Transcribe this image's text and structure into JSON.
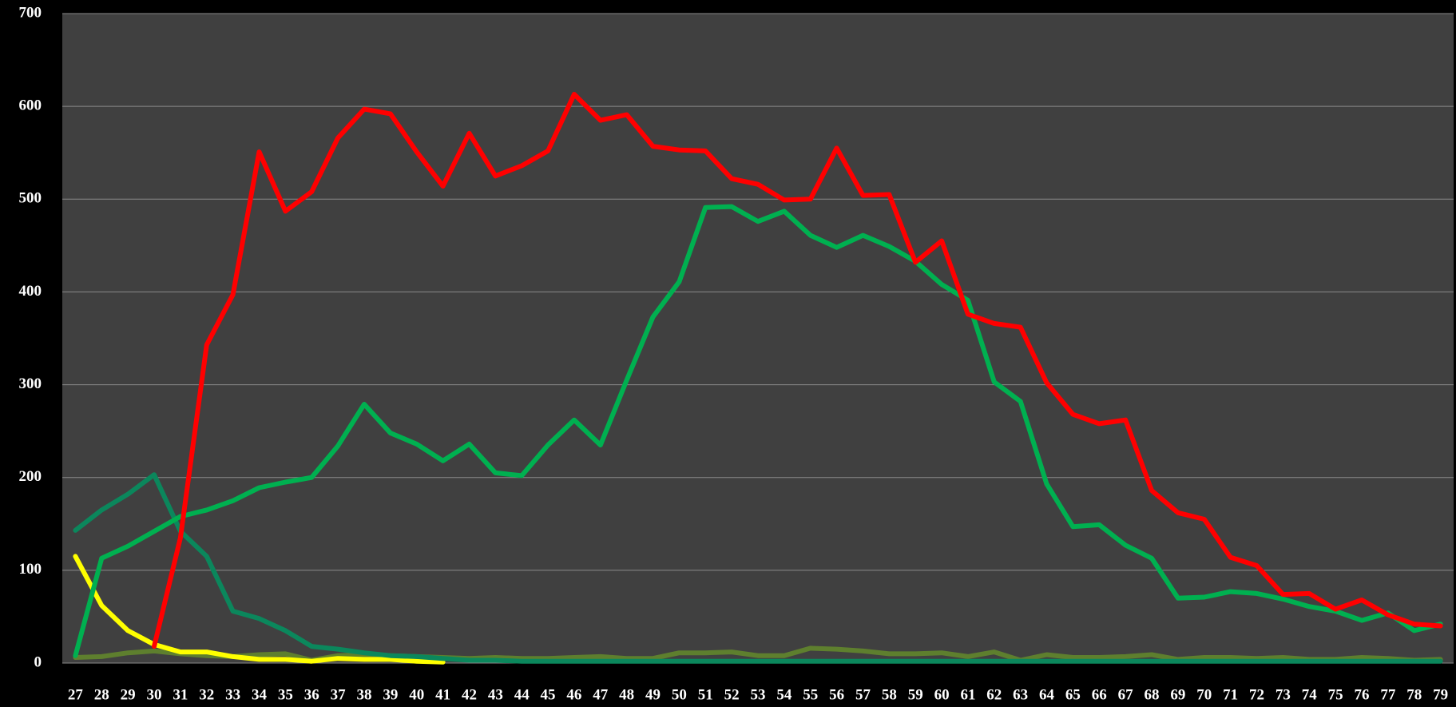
{
  "chart_data": {
    "type": "line",
    "categories": [
      "27",
      "28",
      "29",
      "30",
      "31",
      "32",
      "33",
      "34",
      "35",
      "36",
      "37",
      "38",
      "39",
      "40",
      "41",
      "42",
      "43",
      "44",
      "45",
      "46",
      "47",
      "48",
      "49",
      "50",
      "51",
      "52",
      "53",
      "54",
      "55",
      "56",
      "57",
      "58",
      "59",
      "60",
      "61",
      "62",
      "63",
      "64",
      "65",
      "66",
      "67",
      "68",
      "69",
      "70",
      "71",
      "72",
      "73",
      "74",
      "75",
      "76",
      "77",
      "78",
      "79"
    ],
    "series": [
      {
        "color": "#5e7f2e",
        "values": [
          6,
          7,
          11,
          13,
          10,
          8,
          7,
          9,
          10,
          3,
          8,
          9,
          8,
          7,
          6,
          5,
          6,
          5,
          5,
          6,
          7,
          5,
          5,
          11,
          11,
          12,
          8,
          8,
          16,
          15,
          13,
          10,
          10,
          11,
          7,
          12,
          3,
          9,
          6,
          6,
          7,
          9,
          4,
          6,
          6,
          5,
          6,
          4,
          4,
          6,
          5,
          3,
          4
        ]
      },
      {
        "color": "#ffff00",
        "values": [
          115,
          62,
          35,
          20,
          12,
          12,
          7,
          4,
          4,
          2,
          5,
          4,
          4,
          2,
          1,
          null,
          null,
          null,
          null,
          null,
          null,
          null,
          null,
          null,
          null,
          null,
          null,
          null,
          null,
          null,
          null,
          null,
          null,
          null,
          null,
          null,
          null,
          null,
          null,
          null,
          null,
          null,
          null,
          null,
          null,
          null,
          null,
          null,
          null,
          null,
          null,
          null,
          null
        ]
      },
      {
        "color": "#0b875c",
        "values": [
          143,
          165,
          182,
          203,
          142,
          115,
          56,
          48,
          35,
          18,
          15,
          11,
          8,
          7,
          5,
          3,
          3,
          2,
          2,
          2,
          2,
          2,
          2,
          2,
          2,
          2,
          2,
          2,
          2,
          2,
          2,
          2,
          2,
          2,
          2,
          2,
          2,
          2,
          2,
          2,
          2,
          2,
          2,
          2,
          2,
          2,
          2,
          2,
          2,
          2,
          2,
          2,
          2
        ]
      },
      {
        "color": "#00b050",
        "values": [
          8,
          113,
          126,
          142,
          158,
          165,
          175,
          189,
          195,
          200,
          234,
          279,
          248,
          236,
          218,
          236,
          205,
          202,
          235,
          262,
          235,
          305,
          373,
          411,
          491,
          492,
          476,
          487,
          461,
          448,
          461,
          449,
          433,
          408,
          391,
          303,
          282,
          193,
          147,
          149,
          127,
          113,
          70,
          71,
          77,
          75,
          69,
          61,
          56,
          46,
          54,
          35,
          42
        ]
      },
      {
        "color": "#ff0000",
        "values": [
          null,
          null,
          null,
          18,
          135,
          343,
          397,
          551,
          487,
          508,
          566,
          597,
          592,
          551,
          514,
          571,
          525,
          536,
          552,
          613,
          585,
          591,
          557,
          553,
          552,
          522,
          516,
          499,
          500,
          555,
          504,
          505,
          432,
          455,
          376,
          366,
          362,
          302,
          268,
          258,
          262,
          186,
          162,
          155,
          114,
          105,
          74,
          75,
          58,
          68,
          52,
          42,
          40
        ]
      }
    ],
    "ylim": [
      0,
      700
    ],
    "yticks": [
      0,
      100,
      200,
      300,
      400,
      500,
      600,
      700
    ],
    "grid": true
  }
}
